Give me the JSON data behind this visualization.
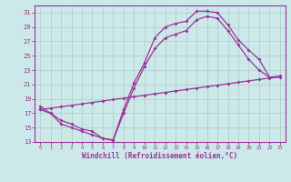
{
  "xlabel": "Windchill (Refroidissement éolien,°C)",
  "bg_color": "#cce8e8",
  "grid_color": "#aaccaa",
  "line_color": "#993399",
  "xlim": [
    -0.5,
    23.5
  ],
  "ylim": [
    13,
    32
  ],
  "yticks": [
    13,
    15,
    17,
    19,
    21,
    23,
    25,
    27,
    29,
    31
  ],
  "xticks": [
    0,
    1,
    2,
    3,
    4,
    5,
    6,
    7,
    8,
    9,
    10,
    11,
    12,
    13,
    14,
    15,
    16,
    17,
    18,
    19,
    20,
    21,
    22,
    23
  ],
  "curve1_x": [
    0,
    1,
    2,
    3,
    4,
    5,
    6,
    7,
    8,
    9,
    10,
    11,
    12,
    13,
    14,
    15,
    16,
    17,
    18,
    19,
    20,
    21,
    22
  ],
  "curve1_y": [
    18.0,
    17.0,
    16.0,
    15.5,
    14.8,
    14.5,
    13.5,
    13.3,
    17.5,
    21.2,
    24.0,
    27.5,
    29.0,
    29.5,
    29.8,
    31.2,
    31.2,
    31.0,
    29.3,
    27.2,
    25.8,
    24.5,
    22.0
  ],
  "curve2_x": [
    0,
    1,
    2,
    3,
    4,
    5,
    6,
    7,
    8,
    9,
    10,
    11,
    12,
    13,
    14,
    15,
    16,
    17,
    18,
    19,
    20,
    21,
    22,
    23
  ],
  "curve2_y": [
    17.5,
    17.0,
    15.5,
    15.0,
    14.5,
    14.0,
    13.5,
    13.2,
    17.0,
    20.5,
    23.5,
    26.0,
    27.5,
    28.0,
    28.5,
    30.0,
    30.5,
    30.2,
    28.5,
    26.5,
    24.5,
    23.0,
    22.0,
    22.2
  ],
  "curve3_x": [
    0,
    1,
    2,
    3,
    4,
    5,
    6,
    7,
    8,
    9,
    10,
    11,
    12,
    13,
    14,
    15,
    16,
    17,
    18,
    19,
    20,
    21,
    22,
    23
  ],
  "curve3_y": [
    17.5,
    17.7,
    17.9,
    18.1,
    18.3,
    18.5,
    18.7,
    18.9,
    19.1,
    19.3,
    19.5,
    19.7,
    19.9,
    20.1,
    20.3,
    20.5,
    20.7,
    20.9,
    21.1,
    21.3,
    21.5,
    21.7,
    21.9,
    22.0
  ]
}
